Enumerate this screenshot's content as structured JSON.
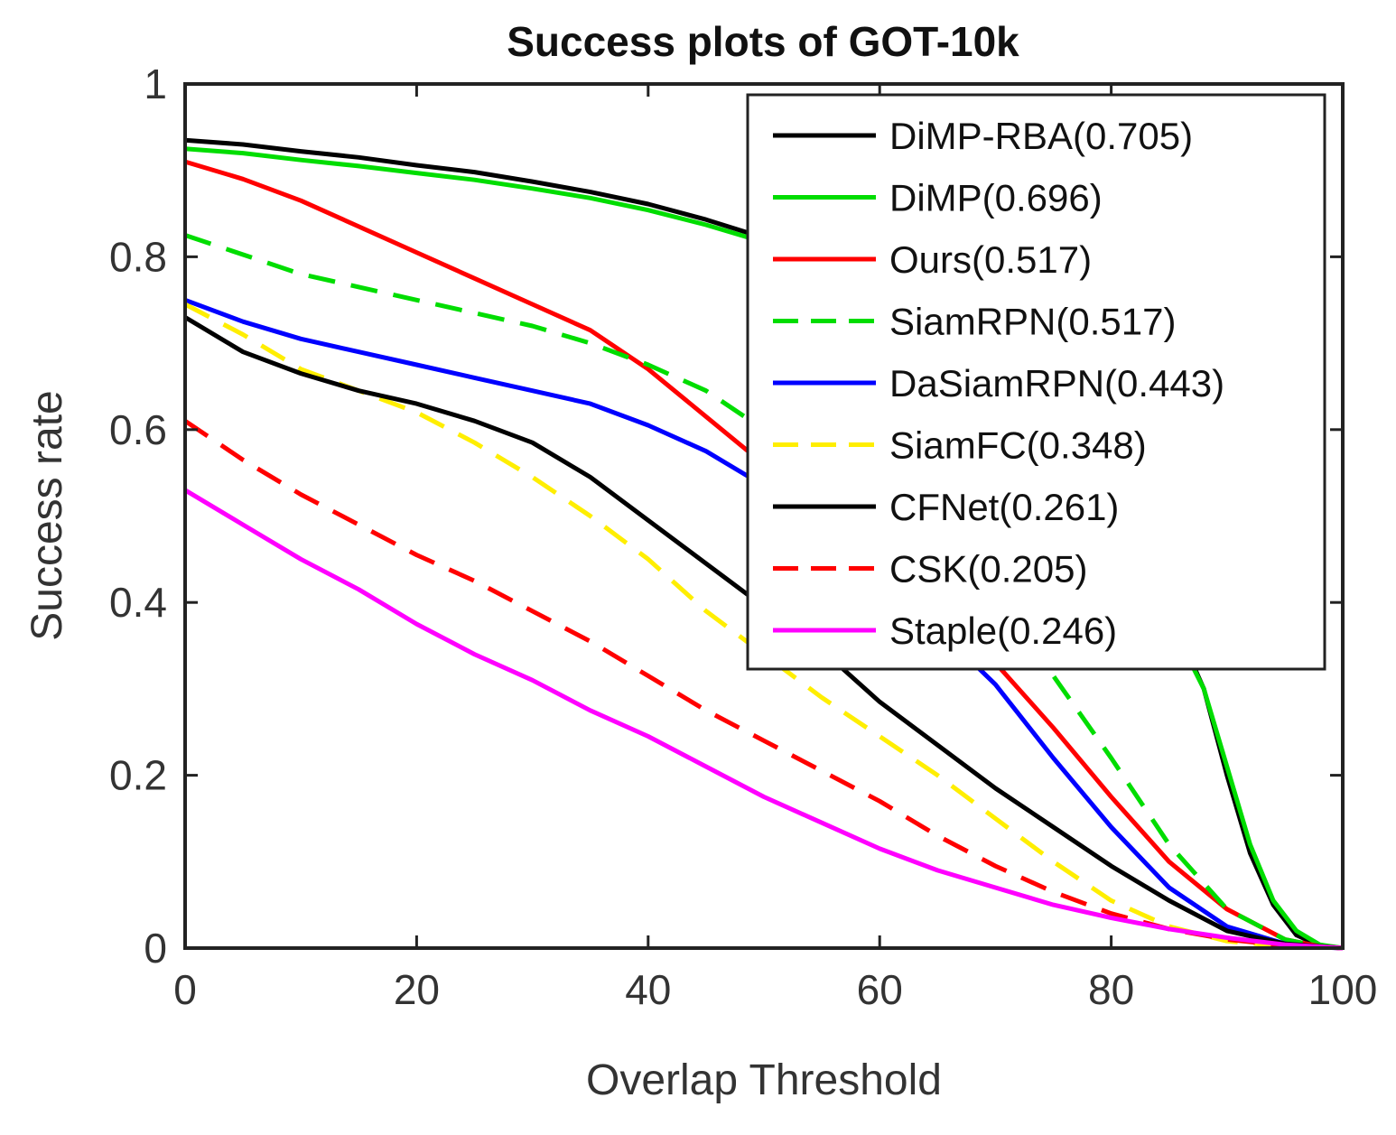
{
  "chart_data": {
    "type": "line",
    "title": "Success plots of GOT-10k",
    "xlabel": "Overlap Threshold",
    "ylabel": "Success rate",
    "xlim": [
      0,
      100
    ],
    "ylim": [
      0,
      1
    ],
    "xticks": [
      0,
      20,
      40,
      60,
      80,
      100
    ],
    "yticks": [
      0,
      0.2,
      0.4,
      0.6,
      0.8,
      1
    ],
    "ytick_labels": [
      "0",
      "0.2",
      "0.4",
      "0.6",
      "0.8",
      "1"
    ],
    "grid": false,
    "legend_position": "top-right",
    "series": [
      {
        "name": "DiMP-RBA(0.705)",
        "color": "#000000",
        "dash": "solid",
        "points": [
          [
            0,
            0.935
          ],
          [
            5,
            0.93
          ],
          [
            10,
            0.922
          ],
          [
            15,
            0.915
          ],
          [
            20,
            0.906
          ],
          [
            25,
            0.898
          ],
          [
            30,
            0.887
          ],
          [
            35,
            0.875
          ],
          [
            40,
            0.861
          ],
          [
            45,
            0.843
          ],
          [
            50,
            0.822
          ],
          [
            55,
            0.798
          ],
          [
            60,
            0.77
          ],
          [
            65,
            0.73
          ],
          [
            70,
            0.675
          ],
          [
            75,
            0.6
          ],
          [
            80,
            0.5
          ],
          [
            85,
            0.39
          ],
          [
            88,
            0.3
          ],
          [
            90,
            0.2
          ],
          [
            92,
            0.11
          ],
          [
            94,
            0.05
          ],
          [
            96,
            0.015
          ],
          [
            98,
            0.003
          ],
          [
            100,
            0
          ]
        ]
      },
      {
        "name": "DiMP(0.696)",
        "color": "#00dd00",
        "dash": "solid",
        "points": [
          [
            0,
            0.925
          ],
          [
            5,
            0.92
          ],
          [
            10,
            0.912
          ],
          [
            15,
            0.905
          ],
          [
            20,
            0.897
          ],
          [
            25,
            0.889
          ],
          [
            30,
            0.879
          ],
          [
            35,
            0.868
          ],
          [
            40,
            0.854
          ],
          [
            45,
            0.837
          ],
          [
            50,
            0.817
          ],
          [
            55,
            0.793
          ],
          [
            60,
            0.765
          ],
          [
            65,
            0.725
          ],
          [
            70,
            0.67
          ],
          [
            75,
            0.595
          ],
          [
            80,
            0.49
          ],
          [
            85,
            0.38
          ],
          [
            88,
            0.3
          ],
          [
            90,
            0.21
          ],
          [
            92,
            0.12
          ],
          [
            94,
            0.055
          ],
          [
            96,
            0.02
          ],
          [
            98,
            0.004
          ],
          [
            100,
            0
          ]
        ]
      },
      {
        "name": "Ours(0.517)",
        "color": "#ff0000",
        "dash": "solid",
        "points": [
          [
            0,
            0.91
          ],
          [
            5,
            0.89
          ],
          [
            10,
            0.865
          ],
          [
            15,
            0.835
          ],
          [
            20,
            0.805
          ],
          [
            25,
            0.775
          ],
          [
            30,
            0.745
          ],
          [
            35,
            0.715
          ],
          [
            40,
            0.67
          ],
          [
            45,
            0.615
          ],
          [
            50,
            0.56
          ],
          [
            55,
            0.5
          ],
          [
            60,
            0.445
          ],
          [
            65,
            0.39
          ],
          [
            70,
            0.33
          ],
          [
            75,
            0.255
          ],
          [
            80,
            0.175
          ],
          [
            85,
            0.1
          ],
          [
            90,
            0.045
          ],
          [
            95,
            0.01
          ],
          [
            98,
            0.002
          ],
          [
            100,
            0
          ]
        ]
      },
      {
        "name": "SiamRPN(0.517)",
        "color": "#00dd00",
        "dash": "dashed",
        "points": [
          [
            0,
            0.825
          ],
          [
            10,
            0.78
          ],
          [
            20,
            0.75
          ],
          [
            30,
            0.72
          ],
          [
            35,
            0.7
          ],
          [
            40,
            0.675
          ],
          [
            45,
            0.645
          ],
          [
            50,
            0.6
          ],
          [
            55,
            0.55
          ],
          [
            60,
            0.5
          ],
          [
            65,
            0.45
          ],
          [
            70,
            0.39
          ],
          [
            75,
            0.315
          ],
          [
            80,
            0.22
          ],
          [
            85,
            0.12
          ],
          [
            90,
            0.045
          ],
          [
            95,
            0.01
          ],
          [
            98,
            0.002
          ],
          [
            100,
            0
          ]
        ]
      },
      {
        "name": "DaSiamRPN(0.443)",
        "color": "#0000ff",
        "dash": "solid",
        "points": [
          [
            0,
            0.75
          ],
          [
            5,
            0.725
          ],
          [
            10,
            0.705
          ],
          [
            15,
            0.69
          ],
          [
            20,
            0.675
          ],
          [
            25,
            0.66
          ],
          [
            30,
            0.645
          ],
          [
            35,
            0.63
          ],
          [
            40,
            0.605
          ],
          [
            45,
            0.575
          ],
          [
            50,
            0.535
          ],
          [
            55,
            0.485
          ],
          [
            60,
            0.43
          ],
          [
            65,
            0.37
          ],
          [
            70,
            0.305
          ],
          [
            75,
            0.22
          ],
          [
            80,
            0.14
          ],
          [
            85,
            0.07
          ],
          [
            90,
            0.025
          ],
          [
            95,
            0.005
          ],
          [
            98,
            0.001
          ],
          [
            100,
            0
          ]
        ]
      },
      {
        "name": "SiamFC(0.348)",
        "color": "#ffee00",
        "dash": "dashed",
        "points": [
          [
            0,
            0.745
          ],
          [
            5,
            0.71
          ],
          [
            10,
            0.67
          ],
          [
            15,
            0.645
          ],
          [
            20,
            0.62
          ],
          [
            25,
            0.585
          ],
          [
            30,
            0.545
          ],
          [
            35,
            0.5
          ],
          [
            40,
            0.45
          ],
          [
            45,
            0.39
          ],
          [
            50,
            0.34
          ],
          [
            55,
            0.29
          ],
          [
            60,
            0.245
          ],
          [
            65,
            0.2
          ],
          [
            70,
            0.15
          ],
          [
            75,
            0.1
          ],
          [
            80,
            0.055
          ],
          [
            85,
            0.025
          ],
          [
            90,
            0.008
          ],
          [
            95,
            0.002
          ],
          [
            100,
            0
          ]
        ]
      },
      {
        "name": "CFNet(0.261)",
        "color": "#000000",
        "dash": "solid",
        "points": [
          [
            0,
            0.73
          ],
          [
            5,
            0.69
          ],
          [
            10,
            0.665
          ],
          [
            15,
            0.645
          ],
          [
            20,
            0.63
          ],
          [
            25,
            0.61
          ],
          [
            30,
            0.585
          ],
          [
            35,
            0.545
          ],
          [
            40,
            0.495
          ],
          [
            45,
            0.445
          ],
          [
            50,
            0.395
          ],
          [
            55,
            0.345
          ],
          [
            60,
            0.285
          ],
          [
            65,
            0.235
          ],
          [
            70,
            0.185
          ],
          [
            75,
            0.14
          ],
          [
            80,
            0.095
          ],
          [
            85,
            0.055
          ],
          [
            90,
            0.02
          ],
          [
            95,
            0.005
          ],
          [
            100,
            0
          ]
        ]
      },
      {
        "name": "CSK(0.205)",
        "color": "#ff0000",
        "dash": "dashed",
        "points": [
          [
            0,
            0.61
          ],
          [
            5,
            0.565
          ],
          [
            10,
            0.525
          ],
          [
            15,
            0.49
          ],
          [
            20,
            0.455
          ],
          [
            25,
            0.425
          ],
          [
            30,
            0.39
          ],
          [
            35,
            0.355
          ],
          [
            40,
            0.315
          ],
          [
            45,
            0.275
          ],
          [
            50,
            0.24
          ],
          [
            55,
            0.205
          ],
          [
            60,
            0.17
          ],
          [
            65,
            0.13
          ],
          [
            70,
            0.095
          ],
          [
            75,
            0.065
          ],
          [
            80,
            0.04
          ],
          [
            85,
            0.022
          ],
          [
            90,
            0.01
          ],
          [
            95,
            0.003
          ],
          [
            100,
            0
          ]
        ]
      },
      {
        "name": "Staple(0.246)",
        "color": "#ff00ff",
        "dash": "solid",
        "points": [
          [
            0,
            0.53
          ],
          [
            5,
            0.49
          ],
          [
            10,
            0.45
          ],
          [
            15,
            0.415
          ],
          [
            20,
            0.375
          ],
          [
            25,
            0.34
          ],
          [
            30,
            0.31
          ],
          [
            35,
            0.275
          ],
          [
            40,
            0.245
          ],
          [
            45,
            0.21
          ],
          [
            50,
            0.175
          ],
          [
            55,
            0.145
          ],
          [
            60,
            0.115
          ],
          [
            65,
            0.09
          ],
          [
            70,
            0.07
          ],
          [
            75,
            0.05
          ],
          [
            80,
            0.035
          ],
          [
            85,
            0.022
          ],
          [
            90,
            0.012
          ],
          [
            95,
            0.004
          ],
          [
            100,
            0
          ]
        ]
      }
    ]
  }
}
